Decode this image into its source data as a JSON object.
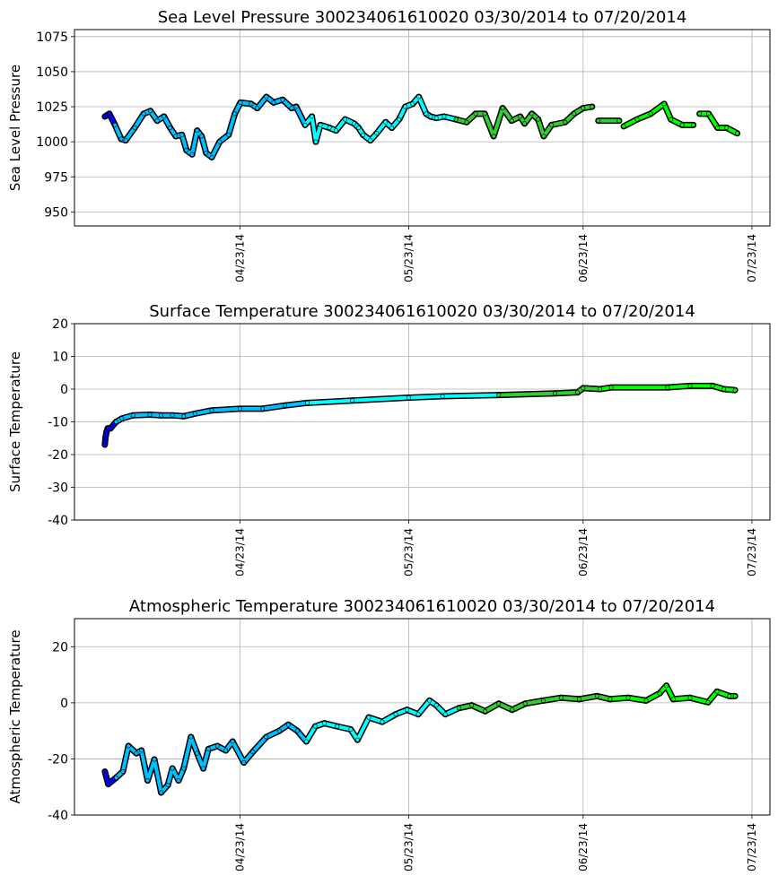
{
  "chart_data": [
    {
      "type": "line",
      "title": "Sea Level Pressure 300234061610020  03/30/2014 to 07/20/2014",
      "xlabel": "",
      "ylabel": "Sea Level Pressure",
      "ylim": [
        940,
        1080
      ],
      "yticks": [
        950,
        975,
        1000,
        1025,
        1050,
        1075
      ],
      "xlim_days": [
        -5.4,
        118.2
      ],
      "x_unit": "days since 03/30/2014",
      "xticks": [
        {
          "day": 24,
          "label": "04/23/14"
        },
        {
          "day": 54,
          "label": "05/23/14"
        },
        {
          "day": 85,
          "label": "06/23/14"
        },
        {
          "day": 115,
          "label": "07/23/14"
        }
      ],
      "grid": true,
      "x": [
        0,
        0.8,
        1.8,
        2.9,
        3.7,
        5.3,
        6.9,
        8.1,
        9.3,
        10.5,
        11.6,
        12.6,
        13.7,
        14.5,
        15.5,
        16.4,
        17.2,
        18,
        19,
        20.4,
        22,
        23.1,
        24.1,
        26,
        27.1,
        28.7,
        30,
        31.6,
        33.2,
        34,
        35.6,
        36.8,
        37.5,
        38.3,
        39.9,
        41.1,
        42.7,
        44.3,
        45.1,
        45.9,
        47.2,
        48.3,
        49.9,
        51,
        52.3,
        53.4,
        54.7,
        55.8,
        57.1,
        57.9,
        58.9,
        60.3,
        62.4,
        64.3,
        65.9,
        67.5,
        69.1,
        70.7,
        72.3,
        73.8,
        74.6,
        75.9,
        77,
        78,
        79.4,
        81.8,
        83.4,
        85,
        86.6,
        87.7,
        91.4,
        92.2,
        94.6,
        97,
        99.4,
        100.6,
        102.6,
        104.6,
        105.7,
        107.3,
        108.9,
        110.5,
        112.4
      ],
      "values": [
        1018,
        1020,
        1012,
        1002,
        1001,
        1010,
        1020,
        1022,
        1015,
        1018,
        1010,
        1004,
        1005,
        994,
        991,
        1008,
        1004,
        992,
        989,
        1000,
        1005,
        1020,
        1028,
        1027,
        1024,
        1032,
        1028,
        1030,
        1024,
        1025,
        1012,
        1018,
        1000,
        1012,
        1010,
        1008,
        1016,
        1013,
        1010,
        1005,
        1001,
        1006,
        1014,
        1010,
        1016,
        1025,
        1027,
        1032,
        1020,
        1018,
        1017,
        1018,
        1016,
        1014,
        1020,
        1020,
        1004,
        1024,
        1015,
        1018,
        1013,
        1020,
        1016,
        1004,
        1012,
        1014,
        1020,
        1024,
        1025,
        1015,
        1015,
        1011,
        1016,
        1020,
        1027,
        1016,
        1012,
        1012,
        1020,
        1020,
        1010,
        1010,
        1006
      ],
      "gaps_after_day": [
        86.6,
        91.4,
        104.6
      ]
    },
    {
      "type": "line",
      "title": "Surface Temperature 300234061610020  03/30/2014 to 07/20/2014",
      "xlabel": "",
      "ylabel": "Surface Temperature",
      "ylim": [
        -40,
        20
      ],
      "yticks": [
        -40,
        -30,
        -20,
        -10,
        0,
        10,
        20
      ],
      "xlim_days": [
        -5.4,
        118.2
      ],
      "x_unit": "days since 03/30/2014",
      "xticks": [
        {
          "day": 24,
          "label": "04/23/14"
        },
        {
          "day": 54,
          "label": "05/23/14"
        },
        {
          "day": 85,
          "label": "06/23/14"
        },
        {
          "day": 115,
          "label": "07/23/14"
        }
      ],
      "grid": true,
      "x": [
        0,
        0.1,
        0.3,
        0.5,
        1,
        2,
        3,
        5,
        8,
        10,
        12,
        14,
        16,
        19,
        24,
        28,
        32,
        36,
        44,
        54,
        60,
        70,
        80,
        84,
        85,
        88,
        90,
        100,
        104,
        108,
        110,
        112
      ],
      "values": [
        -17,
        -15,
        -13,
        -12,
        -12,
        -10,
        -9,
        -8,
        -7.8,
        -8,
        -8,
        -8.3,
        -7.5,
        -6.5,
        -6,
        -6,
        -5,
        -4.2,
        -3.5,
        -2.6,
        -2.2,
        -1.8,
        -1.3,
        -1,
        0.3,
        0,
        0.5,
        0.5,
        1,
        1,
        0,
        -0.3
      ],
      "gaps_after_day": []
    },
    {
      "type": "line",
      "title": "Atmospheric Temperature 300234061610020  03/30/2014 to 07/20/2014",
      "xlabel": "",
      "ylabel": "Atmospheric Temperature",
      "ylim": [
        -40,
        30
      ],
      "yticks": [
        -40,
        -20,
        0,
        20
      ],
      "xlim_days": [
        -5.4,
        118.2
      ],
      "x_unit": "days since 03/30/2014",
      "xticks": [
        {
          "day": 24,
          "label": "04/23/14"
        },
        {
          "day": 54,
          "label": "05/23/14"
        },
        {
          "day": 85,
          "label": "06/23/14"
        },
        {
          "day": 115,
          "label": "07/23/14"
        }
      ],
      "grid": true,
      "x": [
        0,
        0.6,
        2,
        3.2,
        4.2,
        5.6,
        6.5,
        7.6,
        8.8,
        10,
        11.2,
        12,
        13.1,
        14,
        15.3,
        16.4,
        17.5,
        18.4,
        20,
        21.5,
        22.7,
        24.7,
        26.3,
        28.7,
        31,
        32.6,
        34.2,
        35.8,
        37.4,
        39,
        41.3,
        43.7,
        44.9,
        46.9,
        49.3,
        51.7,
        53.7,
        55.7,
        57.7,
        58.9,
        60.5,
        62.9,
        65.2,
        67.6,
        70,
        72.4,
        74.7,
        77.9,
        81.1,
        84.3,
        87.5,
        89.8,
        93,
        96.2,
        98.6,
        99.8,
        101,
        104,
        107.2,
        108.8,
        111,
        112
      ],
      "values": [
        -24.5,
        -29,
        -26.7,
        -24.5,
        -15.4,
        -18,
        -17,
        -27.7,
        -20.2,
        -32,
        -29.3,
        -23.4,
        -27.7,
        -23.4,
        -12.2,
        -18,
        -23.4,
        -16.5,
        -15.4,
        -17,
        -13.8,
        -21.3,
        -17.5,
        -12.2,
        -10,
        -7.8,
        -10,
        -13.8,
        -8.4,
        -7.3,
        -8.4,
        -9.5,
        -13.2,
        -5.2,
        -6.8,
        -4.1,
        -2.5,
        -4.1,
        0.8,
        -0.9,
        -4.1,
        -1.9,
        -0.9,
        -3,
        -0.3,
        -2.5,
        -0.3,
        0.8,
        1.8,
        1.3,
        2.4,
        1.3,
        1.8,
        0.8,
        3.4,
        6.1,
        1.3,
        1.8,
        0.2,
        4,
        2.4,
        2.4
      ],
      "gaps_after_day": []
    }
  ],
  "color_stops": [
    {
      "from_day": 0,
      "color": "#0000ff"
    },
    {
      "from_day": 1.2,
      "color": "#00bfff"
    },
    {
      "from_day": 35,
      "color": "#00ffff"
    },
    {
      "from_day": 62,
      "color": "#32cd32"
    },
    {
      "from_day": 88,
      "color": "#00ff00"
    }
  ]
}
